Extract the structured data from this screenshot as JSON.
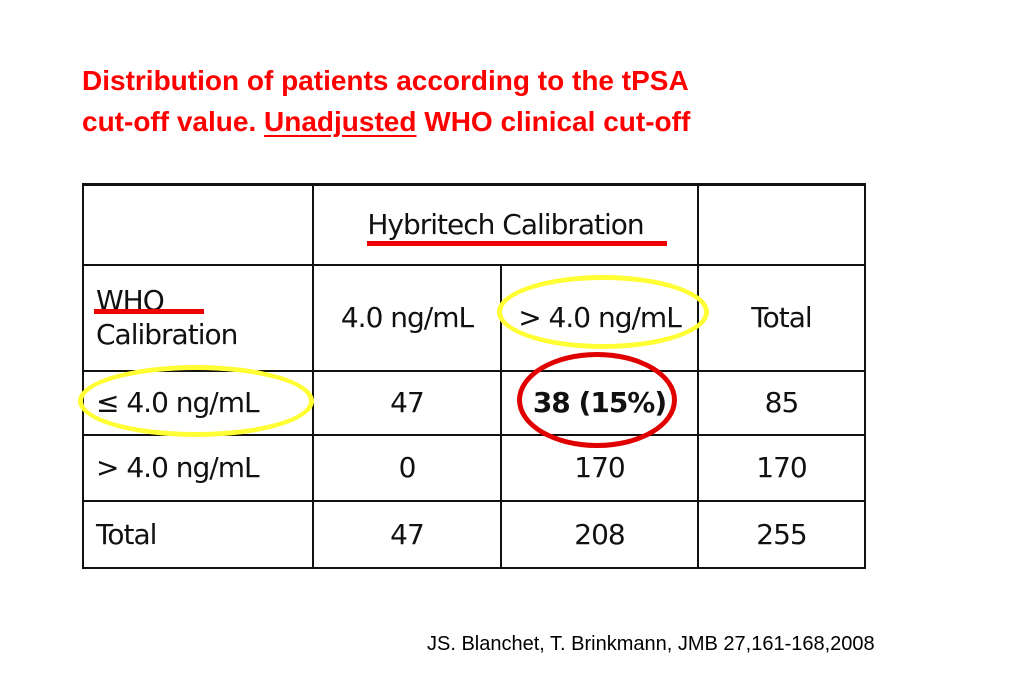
{
  "title": {
    "line1": "Distribution of patients according to the tPSA",
    "line2_pre": "cut-off value. ",
    "line2_underlined": "Unadjusted",
    "line2_post": " WHO clinical cut-off"
  },
  "table": {
    "header_group": "Hybritech Calibration",
    "row_header_label_1": "WHO",
    "row_header_label_2": "Calibration",
    "col_headers": [
      "4.0 ng/mL",
      "> 4.0 ng/mL",
      "Total"
    ],
    "rows": [
      {
        "label": "≤ 4.0 ng/mL",
        "values": [
          "47",
          "38 (15%)",
          "85"
        ]
      },
      {
        "label": "> 4.0 ng/mL",
        "values": [
          "0",
          "170",
          "170"
        ]
      },
      {
        "label": "Total",
        "values": [
          "47",
          "208",
          "255"
        ]
      }
    ]
  },
  "citation": "JS. Blanchet, T. Brinkmann, JMB 27,161-168,2008",
  "colors": {
    "title": "#ff0000",
    "highlight_yellow": "#ffff33",
    "highlight_red": "#e00000"
  }
}
